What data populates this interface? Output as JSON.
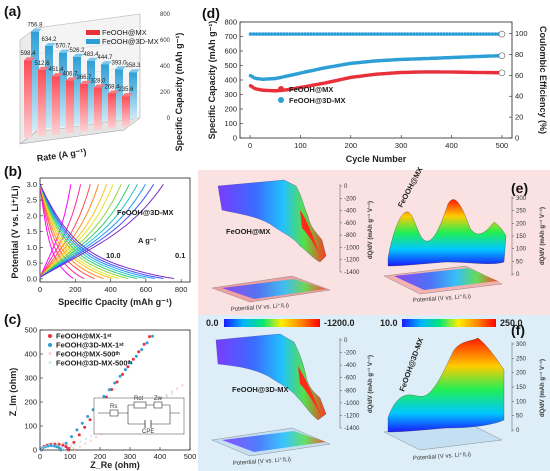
{
  "chart_data": [
    {
      "panel": "(a)",
      "type": "bar",
      "ylabel": "Specific Capacity (mAh g⁻¹)",
      "xlabel": "Rate (A g⁻¹)",
      "yticks": [
        0,
        200,
        400,
        600,
        800
      ],
      "ylim": [
        0,
        800
      ],
      "legend": "top-right",
      "series": [
        {
          "name": "FeOOH@MX",
          "color": "#e8303a",
          "values": [
            598.4,
            512.6,
            451.4,
            406.7,
            366.7,
            328.0,
            268.4,
            235.6
          ],
          "labels": [
            "598.4",
            "512.6",
            "451.4",
            "406.7",
            "366.7",
            "328.0",
            "268.4",
            "235.6"
          ]
        },
        {
          "name": "FeOOH@3D-MX",
          "color": "#2e9fd6",
          "values": [
            756.8,
            634.2,
            570.7,
            526.2,
            483.4,
            444.7,
            393.0,
            358.3
          ],
          "labels": [
            "756.8",
            "634.2",
            "570.7",
            "526.2",
            "483.4",
            "444.7",
            "393.0",
            "358.3"
          ]
        }
      ]
    },
    {
      "panel": "(b)",
      "type": "line",
      "xlabel": "Specific Cpacity (mAh g⁻¹)",
      "ylabel": "Potential (V vs. Li⁺/Li)",
      "xticks": [
        0,
        200,
        400,
        600,
        800
      ],
      "yticks": [
        0.0,
        0.5,
        1.0,
        1.5,
        2.0,
        2.5,
        3.0
      ],
      "xlim": [
        0,
        850
      ],
      "ylim": [
        -0.1,
        3.2
      ],
      "annotation": "FeOOH@3D-MX",
      "rate_title": "A g⁻¹",
      "rate_high": "10.0",
      "rate_low": "0.1",
      "capacities": [
        190,
        250,
        310,
        360,
        410,
        450,
        500,
        550,
        600,
        650,
        700,
        760
      ],
      "colors": [
        "#ff00ff",
        "#ff2a9a",
        "#ff4d4d",
        "#ff8a1f",
        "#ffc21a",
        "#e6e62a",
        "#8fd63a",
        "#2ecc71",
        "#1fc6c6",
        "#2196f3",
        "#3f51ff",
        "#7b2cbf"
      ]
    },
    {
      "panel": "(c)",
      "type": "scatter",
      "xlabel": "Z_Re (ohm)",
      "ylabel": "Z_Im (ohm)",
      "xticks": [
        0,
        100,
        200,
        300,
        400,
        500
      ],
      "yticks": [
        0,
        100,
        200,
        300,
        400,
        500
      ],
      "xlim": [
        0,
        500
      ],
      "ylim": [
        0,
        500
      ],
      "legend": "top-left",
      "series": [
        {
          "name": "FeOOH@MX-1ˢᵗ",
          "color": "#e8303a",
          "slope": 1.75,
          "r": 45
        },
        {
          "name": "FeOOH@3D-MX-1ˢᵗ",
          "color": "#2e9fd6",
          "slope": 1.55,
          "r": 32
        },
        {
          "name": "FeOOH@MX-500ᵗʰ",
          "color": "#f4a3a7",
          "slope": 0.75,
          "r": 55
        },
        {
          "name": "FeOOH@3D-MX-500ᵗʰ",
          "color": "#9fd4ee",
          "slope": 0.65,
          "r": 38
        }
      ],
      "circuit_labels": [
        "Rs",
        "Rct",
        "Zw",
        "CPE"
      ]
    },
    {
      "panel": "(d)",
      "type": "scatter",
      "xlabel": "Cycle Number",
      "ylabel": "Specific Capacity (mAh g⁻¹)",
      "y2label": "Coulombic Efficiency (%)",
      "xticks": [
        0,
        100,
        200,
        300,
        400,
        500
      ],
      "yticks": [
        0,
        100,
        200,
        300,
        400,
        500,
        600,
        700,
        800
      ],
      "y2ticks": [
        0,
        20,
        40,
        60,
        80,
        100
      ],
      "xlim": [
        -20,
        520
      ],
      "ylim": [
        0,
        800
      ],
      "y2lim": [
        0,
        111.1
      ],
      "legend": "center",
      "series": [
        {
          "name": "FeOOH@MX",
          "color": "#e8303a",
          "x": [
            1,
            10,
            25,
            50,
            75,
            100,
            150,
            200,
            250,
            300,
            350,
            400,
            450,
            500
          ],
          "y": [
            360,
            340,
            330,
            325,
            333,
            348,
            380,
            418,
            440,
            452,
            456,
            455,
            452,
            450
          ]
        },
        {
          "name": "FeOOH@3D-MX",
          "color": "#2e9fd6",
          "x": [
            1,
            10,
            25,
            50,
            75,
            100,
            150,
            200,
            250,
            300,
            350,
            400,
            450,
            500
          ],
          "y": [
            430,
            412,
            405,
            410,
            428,
            448,
            485,
            515,
            532,
            542,
            548,
            555,
            562,
            568
          ]
        },
        {
          "name": "CE",
          "color": "#2e9fd6",
          "ce": 99.5
        }
      ]
    }
  ],
  "panels": {
    "a": {
      "tag": "(a)"
    },
    "b": {
      "tag": "(b)"
    },
    "c": {
      "tag": "(c)"
    },
    "d": {
      "tag": "(d)"
    },
    "e": {
      "tag": "(e)",
      "left_label": "FeOOH@MX",
      "right_label": "FeOOH@MX",
      "left_ticks": [
        "0",
        "-200",
        "-400",
        "-600",
        "-800",
        "-1000",
        "-1200",
        "-1400"
      ],
      "right_ticks": [
        "300",
        "250",
        "200",
        "150",
        "100",
        "50",
        "0"
      ],
      "left_axis": "dQ/dV (mAh g⁻¹ V⁻¹)",
      "right_axis": "dQ/dV (mAh g⁻¹ V⁻¹)",
      "floor_axis": "Potential (V vs. Li⁺/Li)",
      "bg": "#fbe2e2"
    },
    "f": {
      "tag": "(f)",
      "left_label": "FeOOH@3D-MX",
      "right_label": "FeOOH@3D-MX",
      "left_ticks": [
        "0",
        "-200",
        "-400",
        "-600",
        "-800",
        "-1000",
        "-1200",
        "-1400"
      ],
      "right_ticks": [
        "300",
        "250",
        "200",
        "150",
        "100",
        "50",
        "0"
      ],
      "left_axis": "dQ/dV (mAh g⁻¹ V⁻¹)",
      "right_axis": "dQ/dV (mAh g⁻¹ V⁻¹)",
      "floor_axis": "Potential (V vs. Li⁺/Li)",
      "bg": "#ddeef8"
    },
    "colorbars": {
      "left_min": "0.0",
      "left_max": "-1200.0",
      "right_min": "10.0",
      "right_max": "250.0"
    }
  }
}
